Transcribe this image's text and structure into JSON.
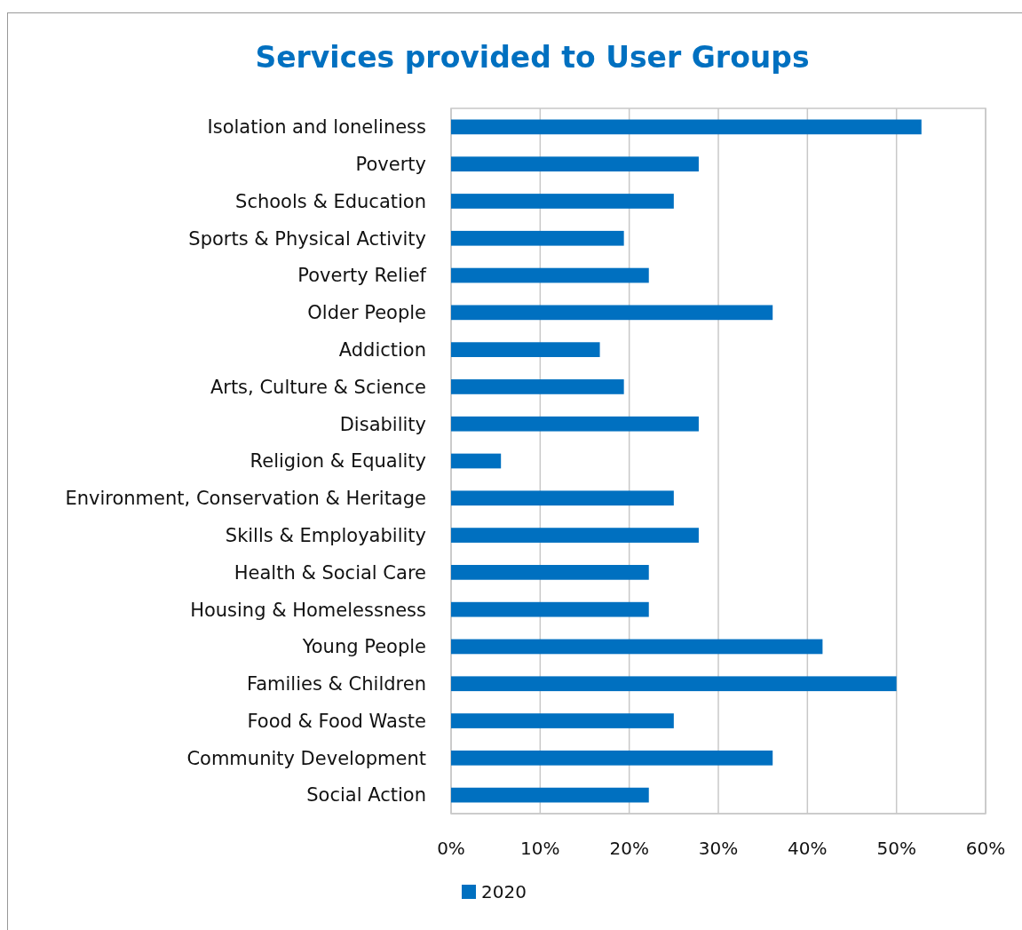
{
  "chart_data": {
    "type": "bar",
    "orientation": "horizontal",
    "title": "Services provided to User Groups",
    "categories": [
      "Isolation and loneliness",
      "Poverty",
      "Schools & Education",
      "Sports & Physical Activity",
      "Poverty Relief",
      "Older People",
      "Addiction",
      "Arts, Culture & Science",
      "Disability",
      "Religion & Equality",
      "Environment, Conservation & Heritage",
      "Skills & Employability",
      "Health & Social Care",
      "Housing & Homelessness",
      "Young People",
      "Families & Children",
      "Food & Food Waste",
      "Community Development",
      "Social Action"
    ],
    "series": [
      {
        "name": "2020",
        "color": "#0070c0",
        "values": [
          52.8,
          27.8,
          25,
          19.4,
          22.2,
          36.1,
          16.7,
          19.4,
          27.8,
          5.6,
          25,
          27.8,
          22.2,
          22.2,
          41.7,
          50,
          25,
          36.1,
          22.2
        ]
      }
    ],
    "xlim": [
      0,
      60
    ],
    "xticks": [
      {
        "value": 0,
        "label": "0%"
      },
      {
        "value": 10,
        "label": "10%"
      },
      {
        "value": 20,
        "label": "20%"
      },
      {
        "value": 30,
        "label": "30%"
      },
      {
        "value": 40,
        "label": "40%"
      },
      {
        "value": 50,
        "label": "50%"
      },
      {
        "value": 60,
        "label": "60%"
      }
    ],
    "grid": "x",
    "legend": "bottom"
  }
}
